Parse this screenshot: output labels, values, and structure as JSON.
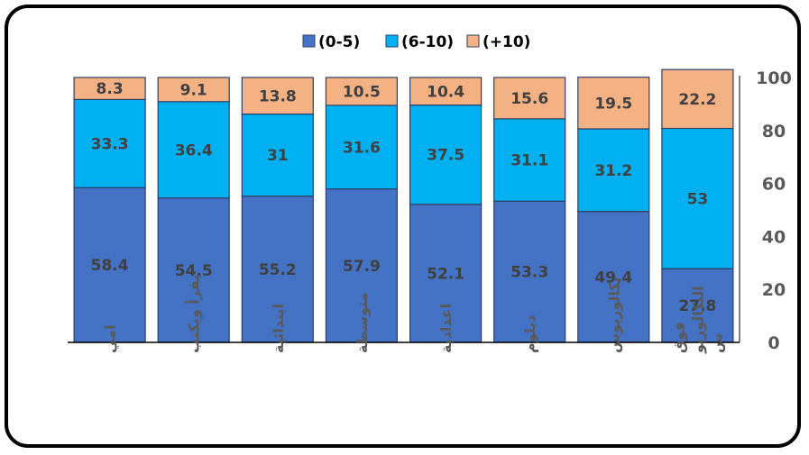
{
  "chart_data": {
    "type": "bar",
    "stacked": true,
    "categories": [
      "فوق البكالوريوس",
      "بكالوريوس",
      "دبلوم",
      "اعدادية",
      "متوسطة",
      "ابتدائية",
      "يقرأ ويكتب",
      "امي"
    ],
    "category_lines": [
      [
        "فوق",
        "البكالوريو",
        "س"
      ],
      [
        "بكالوريوس"
      ],
      [
        "دبلوم"
      ],
      [
        "اعدادية"
      ],
      [
        "متوسطة"
      ],
      [
        "ابتدائية"
      ],
      [
        "يقرأ ويكتب"
      ],
      [
        "امي"
      ]
    ],
    "series": [
      {
        "name": "(0-5)",
        "values": [
          27.8,
          49.4,
          53.3,
          52.1,
          57.9,
          55.2,
          54.5,
          58.4
        ],
        "color": "#4472C4"
      },
      {
        "name": "(6-10)",
        "values": [
          53,
          31.2,
          31.1,
          37.5,
          31.6,
          31,
          36.4,
          33.3
        ],
        "color": "#00B0F0"
      },
      {
        "name": "(+10)",
        "values": [
          22.2,
          19.5,
          15.6,
          10.4,
          10.5,
          13.8,
          9.1,
          8.3
        ],
        "color": "#F4B183"
      }
    ],
    "ylim": [
      0,
      100
    ],
    "yticks": [
      0,
      20,
      40,
      60,
      80,
      100
    ],
    "y_axis_position": "right",
    "legend_position": "top",
    "grid": false,
    "title": "",
    "xlabel": "",
    "ylabel": ""
  }
}
